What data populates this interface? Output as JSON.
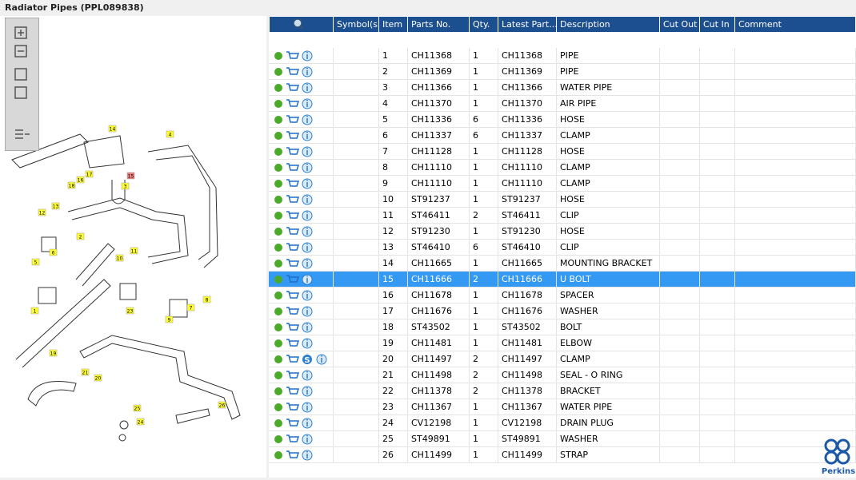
{
  "header": {
    "title": "Radiator Pipes (PPL089838)"
  },
  "diagram": {
    "callouts": [
      "14",
      "4",
      "17",
      "16",
      "18",
      "15",
      "3",
      "12",
      "13",
      "2",
      "5",
      "6",
      "10",
      "11",
      "7",
      "8",
      "9",
      "1",
      "23",
      "19",
      "21",
      "20",
      "25",
      "24",
      "26"
    ]
  },
  "table": {
    "columns": [
      "Symbol(s)",
      "Item",
      "Parts No.",
      "Qty.",
      "Latest Part...",
      "Description",
      "Cut Out",
      "Cut In",
      "Comment"
    ],
    "rows": [
      {
        "item": 1,
        "part": "CH11368",
        "qty": 1,
        "latest": "CH11368",
        "description": "PIPE"
      },
      {
        "item": 2,
        "part": "CH11369",
        "qty": 1,
        "latest": "CH11369",
        "description": "PIPE"
      },
      {
        "item": 3,
        "part": "CH11366",
        "qty": 1,
        "latest": "CH11366",
        "description": "WATER PIPE"
      },
      {
        "item": 4,
        "part": "CH11370",
        "qty": 1,
        "latest": "CH11370",
        "description": "AIR PIPE"
      },
      {
        "item": 5,
        "part": "CH11336",
        "qty": 6,
        "latest": "CH11336",
        "description": "HOSE"
      },
      {
        "item": 6,
        "part": "CH11337",
        "qty": 6,
        "latest": "CH11337",
        "description": "CLAMP"
      },
      {
        "item": 7,
        "part": "CH11128",
        "qty": 1,
        "latest": "CH11128",
        "description": "HOSE"
      },
      {
        "item": 8,
        "part": "CH11110",
        "qty": 1,
        "latest": "CH11110",
        "description": "CLAMP"
      },
      {
        "item": 9,
        "part": "CH11110",
        "qty": 1,
        "latest": "CH11110",
        "description": "CLAMP"
      },
      {
        "item": 10,
        "part": "ST91237",
        "qty": 1,
        "latest": "ST91237",
        "description": "HOSE"
      },
      {
        "item": 11,
        "part": "ST46411",
        "qty": 2,
        "latest": "ST46411",
        "description": "CLIP"
      },
      {
        "item": 12,
        "part": "ST91230",
        "qty": 1,
        "latest": "ST91230",
        "description": "HOSE"
      },
      {
        "item": 13,
        "part": "ST46410",
        "qty": 6,
        "latest": "ST46410",
        "description": "CLIP"
      },
      {
        "item": 14,
        "part": "CH11665",
        "qty": 1,
        "latest": "CH11665",
        "description": "MOUNTING BRACKET"
      },
      {
        "item": 15,
        "part": "CH11666",
        "qty": 2,
        "latest": "CH11666",
        "description": "U BOLT",
        "selected": true
      },
      {
        "item": 16,
        "part": "CH11678",
        "qty": 1,
        "latest": "CH11678",
        "description": "SPACER"
      },
      {
        "item": 17,
        "part": "CH11676",
        "qty": 1,
        "latest": "CH11676",
        "description": "WASHER"
      },
      {
        "item": 18,
        "part": "ST43502",
        "qty": 1,
        "latest": "ST43502",
        "description": "BOLT"
      },
      {
        "item": 19,
        "part": "CH11481",
        "qty": 1,
        "latest": "CH11481",
        "description": "ELBOW"
      },
      {
        "item": 20,
        "part": "CH11497",
        "qty": 2,
        "latest": "CH11497",
        "description": "CLAMP",
        "badge": "S"
      },
      {
        "item": 21,
        "part": "CH11498",
        "qty": 2,
        "latest": "CH11498",
        "description": "SEAL - O RING"
      },
      {
        "item": 22,
        "part": "CH11378",
        "qty": 2,
        "latest": "CH11378",
        "description": "BRACKET"
      },
      {
        "item": 23,
        "part": "CH11367",
        "qty": 1,
        "latest": "CH11367",
        "description": "WATER PIPE"
      },
      {
        "item": 24,
        "part": "CV12198",
        "qty": 1,
        "latest": "CV12198",
        "description": "DRAIN PLUG"
      },
      {
        "item": 25,
        "part": "ST49891",
        "qty": 1,
        "latest": "ST49891",
        "description": "WASHER"
      },
      {
        "item": 26,
        "part": "CH11499",
        "qty": 1,
        "latest": "CH11499",
        "description": "STRAP"
      }
    ]
  },
  "brand": "Perkins"
}
